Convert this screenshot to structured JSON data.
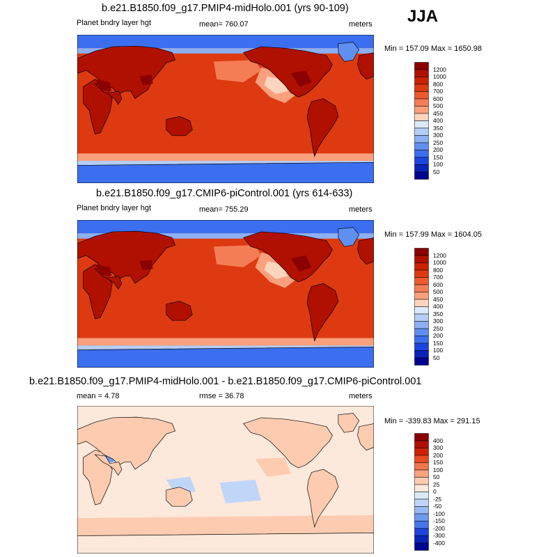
{
  "season": "JJA",
  "panels": [
    {
      "title": "b.e21.B1850.f09_g17.PMIP4-midHolo.001 (yrs 90-109)",
      "left_label": "Planet bndry layer hgt",
      "center_label": "mean= 760.07",
      "units": "meters",
      "minmax": "Min = 157.09 Max = 1650.98",
      "levels": [
        "1200",
        "1000",
        "800",
        "700",
        "600",
        "500",
        "450",
        "400",
        "350",
        "300",
        "250",
        "200",
        "150",
        "100",
        "50"
      ],
      "colors": [
        "#8b0000",
        "#b01000",
        "#cc2200",
        "#dd3a12",
        "#ec5a2e",
        "#f57d55",
        "#fba07c",
        "#fdd4bd",
        "#dbe9fb",
        "#b5cef8",
        "#8cb0f3",
        "#5f8ff0",
        "#3c6ef0",
        "#1e44e0",
        "#0a23b8",
        "#000590"
      ],
      "map_style": "clim1"
    },
    {
      "title": "b.e21.B1850.f09_g17.CMIP6-piControl.001 (yrs 614-633)",
      "left_label": "Planet bndry layer hgt",
      "center_label": "mean= 755.29",
      "units": "meters",
      "minmax": "Min = 157.99 Max = 1604.05",
      "levels": [
        "1200",
        "1000",
        "800",
        "700",
        "600",
        "500",
        "450",
        "400",
        "350",
        "300",
        "250",
        "200",
        "150",
        "100",
        "50"
      ],
      "colors": [
        "#8b0000",
        "#b01000",
        "#cc2200",
        "#dd3a12",
        "#ec5a2e",
        "#f57d55",
        "#fba07c",
        "#fdd4bd",
        "#dbe9fb",
        "#b5cef8",
        "#8cb0f3",
        "#5f8ff0",
        "#3c6ef0",
        "#1e44e0",
        "#0a23b8",
        "#000590"
      ],
      "map_style": "clim2"
    },
    {
      "title": "b.e21.B1850.f09_g17.PMIP4-midHolo.001 - b.e21.B1850.f09_g17.CMIP6-piControl.001",
      "left_label": "mean =   4.78",
      "center_label": "rmse =  36.78",
      "units": "meters",
      "minmax": "Min = -339.83 Max = 291.15",
      "levels": [
        "400",
        "300",
        "200",
        "150",
        "100",
        "50",
        "25",
        "0",
        "-25",
        "-50",
        "-100",
        "-150",
        "-200",
        "-300",
        "-400"
      ],
      "colors": [
        "#8b0000",
        "#b01000",
        "#cc2200",
        "#e84a22",
        "#f2764d",
        "#f9a27d",
        "#fdccb0",
        "#fde8dc",
        "#dbe9fb",
        "#bfd6f8",
        "#98b9f3",
        "#6e9af0",
        "#4576ee",
        "#1e44e0",
        "#0a23b8",
        "#000590"
      ],
      "map_style": "diff"
    }
  ]
}
